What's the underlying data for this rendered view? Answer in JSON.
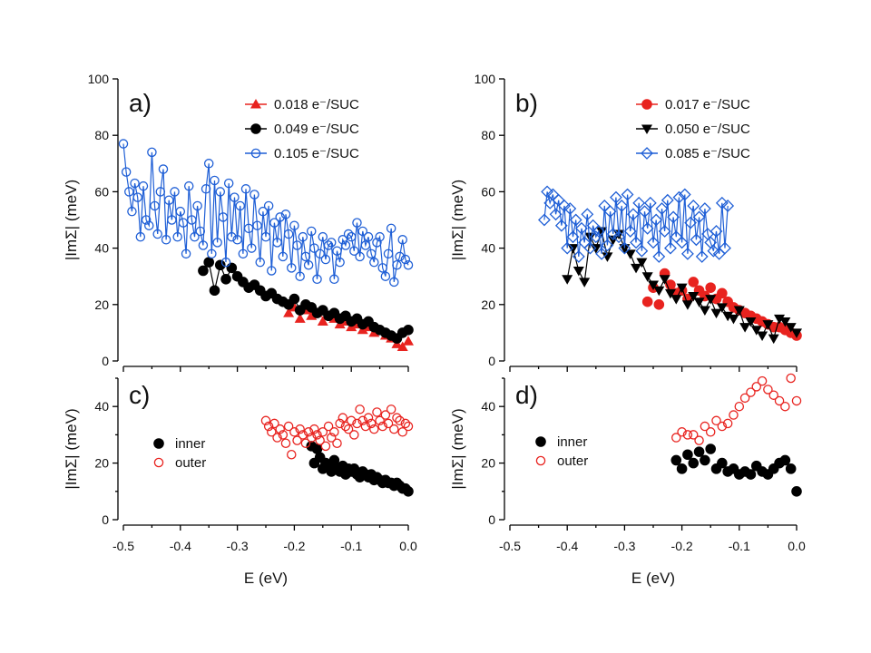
{
  "figure": {
    "x_axis_label": "E (eV)",
    "x_ticks": [
      "-0.5",
      "-0.4",
      "-0.3",
      "-0.2",
      "-0.1",
      "0.0"
    ],
    "y_axis_label": "|ImΣ| (meV)",
    "top_y_ticks": [
      "0",
      "20",
      "40",
      "60",
      "80",
      "100"
    ],
    "bottom_y_ticks": [
      "0",
      "20",
      "40"
    ]
  },
  "chart_data": [
    {
      "panel": "a",
      "label": "a)",
      "type": "scatter",
      "xlabel": "E (eV)",
      "ylabel": "|ImΣ| (meV)",
      "xlim": [
        -0.5,
        0.0
      ],
      "ylim": [
        0,
        100
      ],
      "series": [
        {
          "name": "0.018 e⁻/SUC",
          "legend": "0.018 e⁻/SUC",
          "marker": "triangle",
          "color": "#e8231f",
          "line": false,
          "x": [
            -0.21,
            -0.2,
            -0.19,
            -0.18,
            -0.17,
            -0.16,
            -0.15,
            -0.14,
            -0.13,
            -0.12,
            -0.11,
            -0.1,
            -0.09,
            -0.08,
            -0.07,
            -0.06,
            -0.05,
            -0.04,
            -0.03,
            -0.02,
            -0.01,
            0.0
          ],
          "y": [
            17,
            19,
            15,
            18,
            16,
            17,
            14,
            16,
            15,
            13,
            14,
            12,
            13,
            11,
            12,
            10,
            11,
            9,
            8,
            6,
            5,
            7
          ]
        },
        {
          "name": "0.049 e⁻/SUC",
          "legend": "0.049 e⁻/SUC",
          "marker": "circle",
          "color": "#000000",
          "line": true,
          "x": [
            -0.36,
            -0.35,
            -0.34,
            -0.33,
            -0.32,
            -0.31,
            -0.3,
            -0.29,
            -0.28,
            -0.27,
            -0.26,
            -0.25,
            -0.24,
            -0.23,
            -0.22,
            -0.21,
            -0.2,
            -0.19,
            -0.18,
            -0.17,
            -0.16,
            -0.15,
            -0.14,
            -0.13,
            -0.12,
            -0.11,
            -0.1,
            -0.09,
            -0.08,
            -0.07,
            -0.06,
            -0.05,
            -0.04,
            -0.03,
            -0.02,
            -0.01,
            0.0
          ],
          "y": [
            32,
            35,
            25,
            34,
            29,
            33,
            30,
            28,
            26,
            27,
            25,
            23,
            24,
            22,
            21,
            20,
            22,
            18,
            20,
            19,
            17,
            18,
            16,
            17,
            15,
            16,
            14,
            15,
            13,
            14,
            12,
            11,
            10,
            9,
            8,
            10,
            11
          ]
        },
        {
          "name": "0.105 e⁻/SUC",
          "legend": "0.105 e⁻/SUC",
          "marker": "open-circle",
          "color": "#1f5fd6",
          "line": true,
          "x": [
            -0.5,
            -0.495,
            -0.49,
            -0.485,
            -0.48,
            -0.475,
            -0.47,
            -0.465,
            -0.46,
            -0.455,
            -0.45,
            -0.445,
            -0.44,
            -0.435,
            -0.43,
            -0.425,
            -0.42,
            -0.415,
            -0.41,
            -0.405,
            -0.4,
            -0.395,
            -0.39,
            -0.385,
            -0.38,
            -0.375,
            -0.37,
            -0.365,
            -0.36,
            -0.355,
            -0.35,
            -0.345,
            -0.34,
            -0.335,
            -0.33,
            -0.325,
            -0.32,
            -0.315,
            -0.31,
            -0.305,
            -0.3,
            -0.295,
            -0.29,
            -0.285,
            -0.28,
            -0.275,
            -0.27,
            -0.265,
            -0.26,
            -0.255,
            -0.25,
            -0.245,
            -0.24,
            -0.235,
            -0.23,
            -0.225,
            -0.22,
            -0.215,
            -0.21,
            -0.205,
            -0.2,
            -0.195,
            -0.19,
            -0.185,
            -0.18,
            -0.175,
            -0.17,
            -0.165,
            -0.16,
            -0.155,
            -0.15,
            -0.145,
            -0.14,
            -0.135,
            -0.13,
            -0.125,
            -0.12,
            -0.115,
            -0.11,
            -0.105,
            -0.1,
            -0.095,
            -0.09,
            -0.085,
            -0.08,
            -0.075,
            -0.07,
            -0.065,
            -0.06,
            -0.055,
            -0.05,
            -0.045,
            -0.04,
            -0.035,
            -0.03,
            -0.025,
            -0.02,
            -0.015,
            -0.01,
            -0.005,
            0.0
          ],
          "y": [
            77,
            67,
            60,
            53,
            63,
            58,
            44,
            62,
            50,
            48,
            74,
            55,
            45,
            60,
            68,
            43,
            57,
            50,
            60,
            44,
            53,
            49,
            38,
            62,
            50,
            44,
            55,
            46,
            41,
            61,
            70,
            38,
            64,
            42,
            60,
            51,
            35,
            63,
            44,
            58,
            43,
            55,
            38,
            61,
            47,
            40,
            59,
            48,
            35,
            53,
            44,
            55,
            32,
            49,
            42,
            51,
            37,
            52,
            45,
            33,
            48,
            41,
            30,
            44,
            37,
            34,
            46,
            40,
            29,
            38,
            44,
            36,
            41,
            42,
            29,
            39,
            35,
            43,
            41,
            45,
            44,
            39,
            49,
            37,
            46,
            41,
            44,
            38,
            35,
            42,
            44,
            33,
            30,
            38,
            47,
            28,
            34,
            37,
            43,
            36,
            34
          ]
        }
      ]
    },
    {
      "panel": "b",
      "label": "b)",
      "type": "scatter",
      "xlabel": "E (eV)",
      "ylabel": "|ImΣ| (meV)",
      "xlim": [
        -0.5,
        0.0
      ],
      "ylim": [
        0,
        100
      ],
      "series": [
        {
          "name": "0.017 e⁻/SUC",
          "legend": "0.017 e⁻/SUC",
          "marker": "circle",
          "color": "#e8231f",
          "line": false,
          "x": [
            -0.26,
            -0.25,
            -0.24,
            -0.23,
            -0.22,
            -0.21,
            -0.2,
            -0.19,
            -0.18,
            -0.17,
            -0.16,
            -0.15,
            -0.14,
            -0.13,
            -0.12,
            -0.11,
            -0.1,
            -0.09,
            -0.08,
            -0.07,
            -0.06,
            -0.05,
            -0.04,
            -0.03,
            -0.02,
            -0.01,
            0.0
          ],
          "y": [
            21,
            26,
            20,
            31,
            27,
            24,
            25,
            22,
            28,
            25,
            23,
            26,
            22,
            24,
            21,
            19,
            18,
            17,
            16,
            15,
            14,
            13,
            12,
            12,
            11,
            10,
            9
          ]
        },
        {
          "name": "0.050 e⁻/SUC",
          "legend": "0.050 e⁻/SUC",
          "marker": "down-triangle",
          "color": "#000000",
          "line": true,
          "x": [
            -0.4,
            -0.39,
            -0.38,
            -0.37,
            -0.36,
            -0.35,
            -0.34,
            -0.33,
            -0.32,
            -0.31,
            -0.3,
            -0.29,
            -0.28,
            -0.27,
            -0.26,
            -0.25,
            -0.24,
            -0.23,
            -0.22,
            -0.21,
            -0.2,
            -0.19,
            -0.18,
            -0.17,
            -0.16,
            -0.15,
            -0.14,
            -0.13,
            -0.12,
            -0.11,
            -0.1,
            -0.09,
            -0.08,
            -0.07,
            -0.06,
            -0.05,
            -0.04,
            -0.03,
            -0.02,
            -0.01,
            0.0
          ],
          "y": [
            29,
            40,
            32,
            28,
            44,
            40,
            46,
            37,
            43,
            45,
            40,
            38,
            33,
            35,
            30,
            27,
            25,
            29,
            24,
            22,
            26,
            20,
            23,
            21,
            18,
            22,
            17,
            19,
            16,
            15,
            18,
            12,
            14,
            11,
            9,
            13,
            8,
            15,
            14,
            12,
            10
          ]
        },
        {
          "name": "0.085 e⁻/SUC",
          "legend": "0.085 e⁻/SUC",
          "marker": "open-diamond",
          "color": "#1f5fd6",
          "line": true,
          "x": [
            -0.44,
            -0.435,
            -0.43,
            -0.425,
            -0.42,
            -0.415,
            -0.41,
            -0.405,
            -0.4,
            -0.395,
            -0.39,
            -0.385,
            -0.38,
            -0.375,
            -0.37,
            -0.365,
            -0.36,
            -0.355,
            -0.35,
            -0.345,
            -0.34,
            -0.335,
            -0.33,
            -0.325,
            -0.32,
            -0.315,
            -0.31,
            -0.305,
            -0.3,
            -0.295,
            -0.29,
            -0.285,
            -0.28,
            -0.275,
            -0.27,
            -0.265,
            -0.26,
            -0.255,
            -0.25,
            -0.245,
            -0.24,
            -0.235,
            -0.23,
            -0.225,
            -0.22,
            -0.215,
            -0.21,
            -0.205,
            -0.2,
            -0.195,
            -0.19,
            -0.185,
            -0.18,
            -0.175,
            -0.17,
            -0.165,
            -0.16,
            -0.155,
            -0.15,
            -0.145,
            -0.14,
            -0.135,
            -0.13,
            -0.125,
            -0.12
          ],
          "y": [
            50,
            60,
            56,
            59,
            52,
            57,
            48,
            55,
            40,
            54,
            44,
            50,
            37,
            47,
            42,
            52,
            40,
            48,
            44,
            46,
            38,
            55,
            41,
            53,
            45,
            58,
            44,
            55,
            40,
            59,
            46,
            52,
            42,
            56,
            39,
            53,
            47,
            56,
            42,
            50,
            37,
            54,
            46,
            57,
            40,
            51,
            44,
            58,
            42,
            59,
            38,
            49,
            55,
            43,
            51,
            37,
            54,
            45,
            42,
            39,
            46,
            38,
            56,
            40,
            55
          ]
        }
      ]
    },
    {
      "panel": "c",
      "label": "c)",
      "type": "scatter",
      "xlabel": "E (eV)",
      "ylabel": "|ImΣ| (meV)",
      "xlim": [
        -0.5,
        0.0
      ],
      "ylim": [
        0,
        50
      ],
      "series": [
        {
          "name": "inner",
          "legend": "inner",
          "marker": "circle",
          "color": "#000000",
          "line": false,
          "x": [
            -0.17,
            -0.165,
            -0.16,
            -0.155,
            -0.15,
            -0.145,
            -0.14,
            -0.135,
            -0.13,
            -0.125,
            -0.12,
            -0.115,
            -0.11,
            -0.105,
            -0.1,
            -0.095,
            -0.09,
            -0.085,
            -0.08,
            -0.075,
            -0.07,
            -0.065,
            -0.06,
            -0.055,
            -0.05,
            -0.045,
            -0.04,
            -0.035,
            -0.03,
            -0.025,
            -0.02,
            -0.015,
            -0.01,
            -0.005,
            0.0
          ],
          "y": [
            26,
            20,
            25,
            22,
            18,
            20,
            19,
            17,
            21,
            18,
            17,
            19,
            16,
            18,
            17,
            18,
            16,
            15,
            17,
            16,
            15,
            16,
            14,
            15,
            14,
            13,
            14,
            13,
            13,
            12,
            13,
            12,
            11,
            11,
            10
          ]
        },
        {
          "name": "outer",
          "legend": "outer",
          "marker": "open-circle",
          "color": "#e8231f",
          "line": false,
          "x": [
            -0.25,
            -0.245,
            -0.24,
            -0.235,
            -0.23,
            -0.225,
            -0.22,
            -0.215,
            -0.21,
            -0.205,
            -0.2,
            -0.195,
            -0.19,
            -0.185,
            -0.18,
            -0.175,
            -0.17,
            -0.165,
            -0.16,
            -0.155,
            -0.15,
            -0.145,
            -0.14,
            -0.135,
            -0.13,
            -0.125,
            -0.12,
            -0.115,
            -0.11,
            -0.105,
            -0.1,
            -0.095,
            -0.09,
            -0.085,
            -0.08,
            -0.075,
            -0.07,
            -0.065,
            -0.06,
            -0.055,
            -0.05,
            -0.045,
            -0.04,
            -0.035,
            -0.03,
            -0.025,
            -0.02,
            -0.015,
            -0.01,
            -0.005,
            0.0
          ],
          "y": [
            35,
            33,
            31,
            34,
            29,
            32,
            30,
            27,
            33,
            23,
            31,
            28,
            32,
            30,
            27,
            31,
            29,
            32,
            30,
            28,
            31,
            26,
            33,
            29,
            31,
            27,
            34,
            36,
            33,
            32,
            35,
            30,
            34,
            39,
            35,
            33,
            36,
            34,
            32,
            38,
            35,
            33,
            37,
            34,
            39,
            32,
            36,
            35,
            31,
            34,
            33
          ]
        }
      ]
    },
    {
      "panel": "d",
      "label": "d)",
      "type": "scatter",
      "xlabel": "E (eV)",
      "ylabel": "|ImΣ| (meV)",
      "xlim": [
        -0.5,
        0.0
      ],
      "ylim": [
        0,
        50
      ],
      "series": [
        {
          "name": "inner",
          "legend": "inner",
          "marker": "circle",
          "color": "#000000",
          "line": false,
          "x": [
            -0.21,
            -0.2,
            -0.19,
            -0.18,
            -0.17,
            -0.16,
            -0.15,
            -0.14,
            -0.13,
            -0.12,
            -0.11,
            -0.1,
            -0.09,
            -0.08,
            -0.07,
            -0.06,
            -0.05,
            -0.04,
            -0.03,
            -0.02,
            -0.01,
            0.0
          ],
          "y": [
            21,
            18,
            23,
            20,
            24,
            21,
            25,
            18,
            20,
            17,
            18,
            16,
            17,
            16,
            19,
            17,
            16,
            18,
            20,
            21,
            18,
            10
          ]
        },
        {
          "name": "outer",
          "legend": "outer",
          "marker": "open-circle",
          "color": "#e8231f",
          "line": false,
          "x": [
            -0.21,
            -0.2,
            -0.19,
            -0.18,
            -0.17,
            -0.16,
            -0.15,
            -0.14,
            -0.13,
            -0.12,
            -0.11,
            -0.1,
            -0.09,
            -0.08,
            -0.07,
            -0.06,
            -0.05,
            -0.04,
            -0.03,
            -0.02,
            -0.01,
            0.0
          ],
          "y": [
            29,
            31,
            30,
            30,
            28,
            33,
            31,
            35,
            33,
            34,
            37,
            40,
            43,
            45,
            47,
            49,
            46,
            44,
            42,
            40,
            50,
            42
          ]
        }
      ]
    }
  ]
}
